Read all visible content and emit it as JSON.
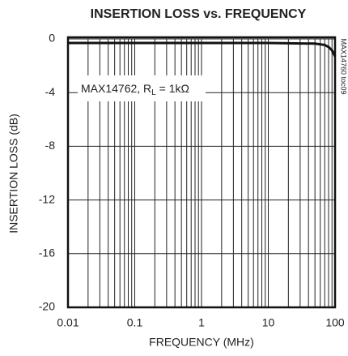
{
  "chart_data": {
    "type": "line",
    "title": "INSERTION LOSS vs. FREQUENCY",
    "x_label": "FREQUENCY (MHz)",
    "y_label": "INSERTION LOSS (dB)",
    "annotation": [
      "MAX14762, R",
      "L",
      " = 1kΩ"
    ],
    "side_note": "MAX14760 toc09",
    "log_x": true,
    "grid": true,
    "minor_grid": true,
    "xlim": [
      0.01,
      100
    ],
    "xticks": [
      0.01,
      0.1,
      1,
      10,
      100
    ],
    "ylim": [
      -20,
      0
    ],
    "yticks": [
      0,
      -4,
      -8,
      -12,
      -16,
      -20
    ],
    "series": [
      {
        "name": "MAX14762",
        "color": "#111111",
        "x": [
          0.01,
          1,
          10,
          50,
          70,
          80,
          90,
          100
        ],
        "values": [
          -0.3,
          -0.3,
          -0.3,
          -0.35,
          -0.45,
          -0.6,
          -0.85,
          -1.3
        ]
      }
    ]
  }
}
